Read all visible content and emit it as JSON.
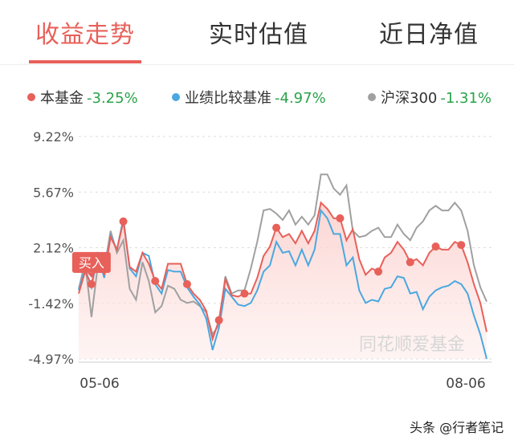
{
  "tabs": [
    {
      "label": "收益走势",
      "active": true
    },
    {
      "label": "实时估值",
      "active": false
    },
    {
      "label": "近日净值",
      "active": false
    }
  ],
  "legend": [
    {
      "name": "本基金",
      "value": "-3.25%",
      "color": "#e8605a"
    },
    {
      "name": "业绩比较基准",
      "value": "-4.97%",
      "color": "#4aa8e0"
    },
    {
      "name": "沪深300",
      "value": "-1.31%",
      "color": "#a0a0a0"
    }
  ],
  "buy_label": "买入",
  "chart_watermark": "同花顺爱基金",
  "footer_watermark": "头条 @行者笔记",
  "colors": {
    "fund": "#e8605a",
    "benchmark": "#4aa8e0",
    "csi300": "#a0a0a0",
    "fill": "#fde3e1",
    "grid": "#dddddd"
  },
  "chart_data": {
    "type": "line",
    "title": "",
    "xlabel": "",
    "ylabel": "",
    "x_tick_labels": [
      "05-06",
      "08-06"
    ],
    "y_tick_labels": [
      "9.22%",
      "5.67%",
      "2.12%",
      "-1.42%",
      "-4.97%"
    ],
    "ylim": [
      -4.97,
      9.22
    ],
    "grid": "horizontal-dashed",
    "legend_position": "top",
    "num_points": 65,
    "series": [
      {
        "name": "本基金",
        "values": [
          -0.8,
          0.6,
          -0.2,
          1.7,
          0.4,
          2.8,
          2.0,
          3.8,
          0.9,
          0.6,
          1.8,
          1.1,
          0.0,
          -0.5,
          1.1,
          1.1,
          1.1,
          -0.2,
          -0.8,
          -1.2,
          -1.9,
          -3.7,
          -2.5,
          0.1,
          -0.9,
          -1.0,
          -0.8,
          -0.8,
          0.2,
          1.6,
          2.2,
          3.4,
          2.8,
          3.0,
          2.4,
          3.2,
          2.4,
          3.2,
          5.0,
          4.6,
          4.0,
          4.0,
          2.6,
          3.3,
          1.4,
          0.4,
          0.8,
          0.6,
          1.5,
          1.8,
          2.5,
          2.0,
          1.2,
          1.4,
          1.0,
          1.8,
          2.2,
          2.0,
          2.0,
          2.5,
          2.3,
          1.2,
          -0.2,
          -1.4,
          -3.25
        ]
      },
      {
        "name": "业绩比较基准",
        "values": [
          -0.6,
          0.8,
          -0.4,
          1.7,
          0.2,
          2.9,
          2.0,
          4.0,
          0.8,
          0.3,
          1.8,
          1.6,
          -0.2,
          -0.8,
          0.7,
          0.6,
          0.6,
          -0.4,
          -1.0,
          -1.5,
          -2.4,
          -4.4,
          -3.0,
          -0.5,
          -1.0,
          -1.5,
          -1.6,
          -1.4,
          -0.6,
          0.6,
          1.0,
          2.5,
          1.8,
          1.9,
          1.0,
          2.0,
          1.0,
          2.0,
          4.5,
          4.0,
          3.0,
          3.0,
          1.0,
          1.5,
          -0.6,
          -1.4,
          -1.2,
          -1.3,
          -0.5,
          -0.4,
          0.3,
          0.2,
          -0.8,
          -0.7,
          -1.8,
          -1.0,
          -0.6,
          -0.4,
          -0.3,
          0.0,
          -0.2,
          -0.8,
          -2.2,
          -3.4,
          -4.97
        ]
      },
      {
        "name": "沪深300",
        "values": [
          -0.5,
          1.2,
          -2.3,
          1.0,
          0.8,
          3.2,
          1.8,
          2.6,
          -0.5,
          -1.2,
          1.2,
          0.0,
          -2.0,
          -1.6,
          -0.3,
          -0.5,
          -1.2,
          -1.4,
          -1.3,
          -1.6,
          -2.0,
          -3.4,
          -2.8,
          0.3,
          -0.8,
          -0.6,
          -0.6,
          0.8,
          2.5,
          4.5,
          4.6,
          4.3,
          3.9,
          4.5,
          3.6,
          4.1,
          3.6,
          4.2,
          6.8,
          6.8,
          5.9,
          5.5,
          6.1,
          3.2,
          2.8,
          2.9,
          3.2,
          3.4,
          2.8,
          2.8,
          3.6,
          3.0,
          2.6,
          3.4,
          3.8,
          4.5,
          4.8,
          4.5,
          4.5,
          5.0,
          4.5,
          3.2,
          1.0,
          -0.4,
          -1.31
        ]
      }
    ],
    "markers": {
      "series": "本基金",
      "indices": [
        2,
        7,
        12,
        17,
        22,
        26,
        31,
        41,
        47,
        52,
        56,
        60
      ],
      "buy_index": 2
    }
  }
}
